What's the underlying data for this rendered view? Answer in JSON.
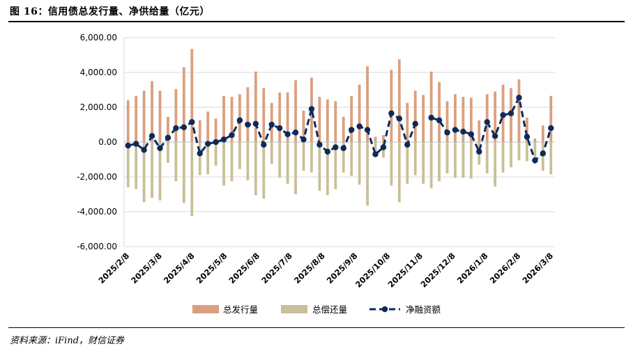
{
  "header": {
    "title": "图 16：信用债总发行量、净供给量（亿元）"
  },
  "footer": {
    "source": "资料来源：iFind，财信证券"
  },
  "chart_data": {
    "type": "bar",
    "title": "信用债总发行量、净供给量（亿元）",
    "ylim": [
      -6000,
      6000
    ],
    "yticks": [
      6000,
      4000,
      2000,
      0,
      -2000,
      -4000,
      -6000
    ],
    "ytick_labels": [
      "6,000.00",
      "4,000.00",
      "2,000.00",
      "0.00",
      "-2,000.00",
      "-4,000.00",
      "-6,000.00"
    ],
    "xtick_labels": [
      "2025/2/8",
      "2025/3/8",
      "2025/4/8",
      "2025/5/8",
      "2025/6/8",
      "2025/7/8",
      "2025/8/8",
      "2025/9/8",
      "2025/10/8",
      "2025/11/8",
      "2025/12/8",
      "2026/1/8",
      "2026/2/8",
      "2026/3/8"
    ],
    "legend_position": "bottom-center",
    "colors": {
      "issuance": "#d9a07f",
      "repayment": "#c9bf98",
      "net": "#0d2a5c"
    },
    "series": [
      {
        "name": "总发行量",
        "kind": "bar",
        "values": [
          2400,
          2650,
          2950,
          3500,
          2950,
          1450,
          3050,
          4300,
          5350,
          1250,
          1750,
          1350,
          2650,
          2600,
          2750,
          3150,
          4050,
          3100,
          2250,
          2850,
          2850,
          3550,
          1800,
          3700,
          2600,
          2450,
          2350,
          1450,
          2650,
          3300,
          4350,
          300,
          400,
          4150,
          4750,
          2250,
          2950,
          2700,
          4050,
          3450,
          2350,
          2750,
          2600,
          2550,
          1250,
          2750,
          2900,
          3300,
          3100,
          3600,
          1400,
          200,
          950,
          2650
        ]
      },
      {
        "name": "总偿还量",
        "kind": "bar",
        "values": [
          -2600,
          -2700,
          -3450,
          -3200,
          -3350,
          -1200,
          -2250,
          -3500,
          -4250,
          -1900,
          -1850,
          -1350,
          -2500,
          -2250,
          -1550,
          -2200,
          -3050,
          -3250,
          -1250,
          -2050,
          -2400,
          -3000,
          -1650,
          -1750,
          -2800,
          -3050,
          -2700,
          -1750,
          -1950,
          -2450,
          -3650,
          -750,
          -900,
          -2500,
          -3450,
          -2400,
          -1900,
          -2400,
          -2650,
          -2250,
          -1800,
          -2050,
          -2050,
          -2100,
          -1300,
          -1800,
          -2550,
          -1750,
          -1450,
          -1050,
          -1100,
          -1250,
          -1650,
          -1850
        ]
      },
      {
        "name": "净融资额",
        "kind": "line",
        "values": [
          -200,
          -100,
          -450,
          350,
          -350,
          250,
          800,
          850,
          1150,
          -650,
          -100,
          0,
          150,
          400,
          1250,
          1000,
          1050,
          -150,
          1000,
          800,
          450,
          550,
          150,
          1900,
          -150,
          -550,
          -300,
          -350,
          700,
          900,
          700,
          -700,
          -300,
          1650,
          1350,
          -150,
          1050,
          null,
          1400,
          1250,
          550,
          700,
          600,
          450,
          -550,
          1150,
          350,
          1550,
          1650,
          2550,
          300,
          -1050,
          -650,
          800
        ]
      }
    ]
  }
}
